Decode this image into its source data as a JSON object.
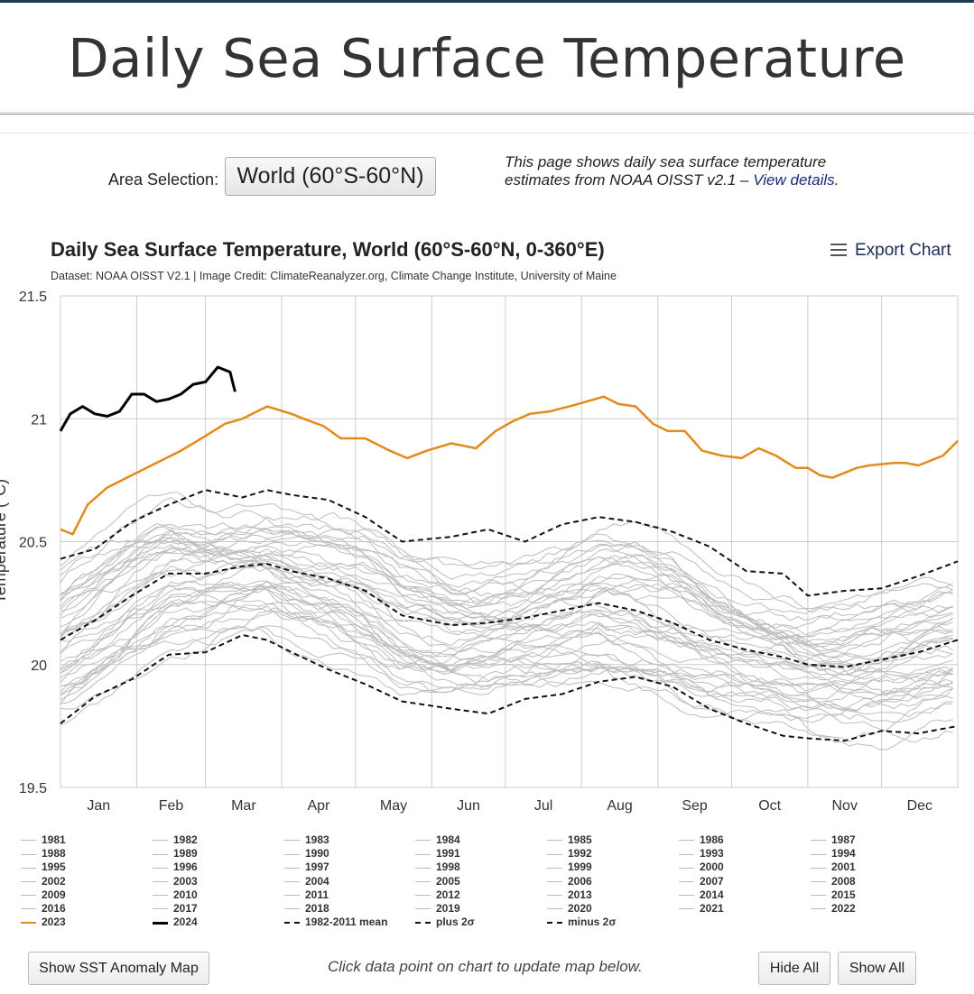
{
  "page_title": "Daily Sea Surface Temperature",
  "area": {
    "label": "Area Selection:",
    "selected": "World (60°S-60°N)"
  },
  "description": {
    "text": "This page shows daily sea surface temperature estimates from NOAA OISST v2.1 – ",
    "link": "View details",
    "after": "."
  },
  "export_label": "Export Chart",
  "buttons": {
    "anomaly_map": "Show SST Anomaly Map",
    "hide_all": "Hide All",
    "show_all": "Show All"
  },
  "hint": "Click data point on chart to update map below.",
  "colors": {
    "y2023": "#e38a1c",
    "y2024": "#000000",
    "history": "#bdbdbd",
    "grid": "#cccccc"
  },
  "chart_data": {
    "type": "line",
    "title": "Daily Sea Surface Temperature, World (60°S-60°N, 0-360°E)",
    "subtitle": "Dataset: NOAA OISST V2.1 | Image Credit: ClimateReanalyzer.org, Climate Change Institute, University of Maine",
    "ylabel": "Temperature (°C)",
    "ylim": [
      19.5,
      21.5
    ],
    "yticks": [
      19.5,
      20,
      20.5,
      21,
      21.5
    ],
    "ytick_labels": [
      "19.5",
      "20",
      "20.5",
      "21",
      "21.5"
    ],
    "xlim": [
      1,
      366
    ],
    "months": [
      "Jan",
      "Feb",
      "Mar",
      "Apr",
      "May",
      "Jun",
      "Jul",
      "Aug",
      "Sep",
      "Oct",
      "Nov",
      "Dec"
    ],
    "grid": true,
    "legend_position": "bottom",
    "series": [
      {
        "name": "2023",
        "x": [
          1,
          6,
          12,
          20,
          30,
          40,
          50,
          60,
          68,
          75,
          85,
          95,
          100,
          108,
          115,
          125,
          135,
          142,
          150,
          160,
          170,
          178,
          185,
          192,
          200,
          208,
          215,
          222,
          228,
          235,
          242,
          248,
          255,
          262,
          270,
          278,
          285,
          292,
          300,
          305,
          310,
          315,
          320,
          325,
          330,
          340,
          345,
          350,
          355,
          360,
          366
        ],
        "values": [
          20.55,
          20.53,
          20.65,
          20.72,
          20.77,
          20.82,
          20.87,
          20.93,
          20.98,
          21.0,
          21.05,
          21.02,
          21.0,
          20.97,
          20.92,
          20.92,
          20.87,
          20.84,
          20.87,
          20.9,
          20.88,
          20.95,
          20.99,
          21.02,
          21.03,
          21.05,
          21.07,
          21.09,
          21.06,
          21.05,
          20.98,
          20.95,
          20.95,
          20.87,
          20.85,
          20.84,
          20.88,
          20.85,
          20.8,
          20.8,
          20.77,
          20.76,
          20.78,
          20.8,
          20.81,
          20.82,
          20.82,
          20.81,
          20.83,
          20.85,
          20.91
        ]
      },
      {
        "name": "2024",
        "x": [
          1,
          5,
          10,
          15,
          20,
          25,
          30,
          35,
          40,
          45,
          50,
          55,
          60,
          65,
          70,
          72
        ],
        "values": [
          20.95,
          21.02,
          21.05,
          21.02,
          21.01,
          21.03,
          21.1,
          21.1,
          21.07,
          21.08,
          21.1,
          21.14,
          21.15,
          21.21,
          21.19,
          21.11
        ]
      },
      {
        "name": "1982-2011 mean",
        "x": [
          1,
          15,
          30,
          45,
          60,
          75,
          85,
          95,
          110,
          125,
          140,
          160,
          175,
          190,
          205,
          220,
          235,
          250,
          265,
          280,
          295,
          305,
          320,
          335,
          350,
          366
        ],
        "values": [
          20.1,
          20.18,
          20.28,
          20.37,
          20.37,
          20.4,
          20.41,
          20.38,
          20.35,
          20.3,
          20.2,
          20.16,
          20.17,
          20.19,
          20.22,
          20.25,
          20.22,
          20.17,
          20.1,
          20.06,
          20.03,
          20.0,
          19.99,
          20.02,
          20.05,
          20.1
        ]
      },
      {
        "name": "plus 2σ",
        "x": [
          1,
          15,
          30,
          45,
          60,
          75,
          85,
          95,
          110,
          125,
          140,
          160,
          175,
          190,
          205,
          220,
          235,
          250,
          265,
          280,
          295,
          305,
          320,
          335,
          350,
          366
        ],
        "values": [
          20.43,
          20.47,
          20.58,
          20.65,
          20.71,
          20.68,
          20.71,
          20.69,
          20.67,
          20.6,
          20.5,
          20.52,
          20.55,
          20.5,
          20.57,
          20.6,
          20.58,
          20.54,
          20.48,
          20.38,
          20.37,
          20.28,
          20.3,
          20.31,
          20.36,
          20.42
        ]
      },
      {
        "name": "minus 2σ",
        "x": [
          1,
          15,
          30,
          45,
          60,
          75,
          85,
          95,
          110,
          125,
          140,
          160,
          175,
          190,
          205,
          220,
          235,
          250,
          265,
          280,
          295,
          305,
          320,
          335,
          350,
          366
        ],
        "values": [
          19.76,
          19.87,
          19.94,
          20.04,
          20.05,
          20.12,
          20.1,
          20.05,
          19.98,
          19.92,
          19.85,
          19.82,
          19.8,
          19.86,
          19.88,
          19.93,
          19.95,
          19.91,
          19.82,
          19.76,
          19.71,
          19.7,
          19.69,
          19.73,
          19.72,
          19.75
        ]
      }
    ],
    "legend": [
      "1981",
      "1982",
      "1983",
      "1984",
      "1985",
      "1986",
      "1987",
      "1988",
      "1989",
      "1990",
      "1991",
      "1992",
      "1993",
      "1994",
      "1995",
      "1996",
      "1997",
      "1998",
      "1999",
      "2000",
      "2001",
      "2002",
      "2003",
      "2004",
      "2005",
      "2006",
      "2007",
      "2008",
      "2009",
      "2010",
      "2011",
      "2012",
      "2013",
      "2014",
      "2015",
      "2016",
      "2017",
      "2018",
      "2019",
      "2020",
      "2021",
      "2022",
      "2023",
      "2024",
      "1982-2011 mean",
      "plus 2σ",
      "minus 2σ"
    ]
  }
}
